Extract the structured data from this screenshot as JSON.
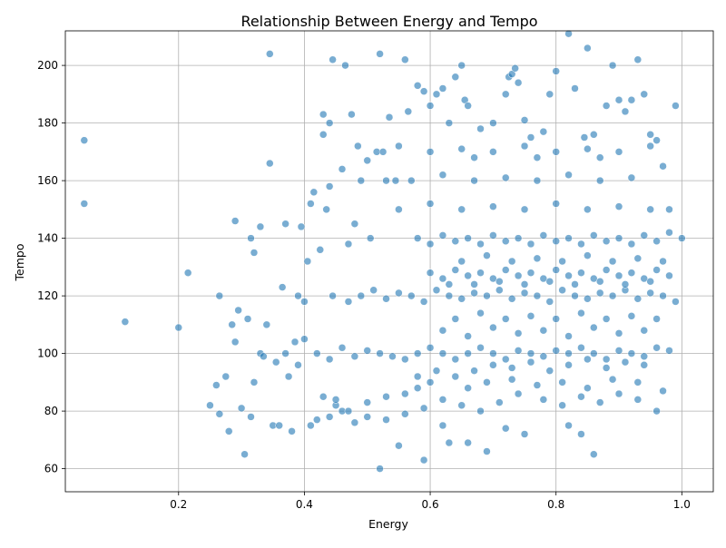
{
  "chart_data": {
    "type": "scatter",
    "title": "Relationship Between Energy and Tempo",
    "xlabel": "Energy",
    "ylabel": "Tempo",
    "xlim": [
      0.02,
      1.05
    ],
    "ylim": [
      52,
      212
    ],
    "xticks": [
      0.2,
      0.4,
      0.6,
      0.8,
      1.0
    ],
    "xtick_labels": [
      "0.2",
      "0.4",
      "0.6",
      "0.8",
      "1.0"
    ],
    "yticks": [
      60,
      80,
      100,
      120,
      140,
      160,
      180,
      200
    ],
    "ytick_labels": [
      "60",
      "80",
      "100",
      "120",
      "140",
      "160",
      "180",
      "200"
    ],
    "grid": true,
    "marker_color": "#1f77b4",
    "marker_alpha": 0.6,
    "points": [
      [
        0.05,
        152
      ],
      [
        0.05,
        174
      ],
      [
        0.115,
        111
      ],
      [
        0.2,
        109
      ],
      [
        0.215,
        128
      ],
      [
        0.25,
        82
      ],
      [
        0.26,
        89
      ],
      [
        0.265,
        79
      ],
      [
        0.265,
        120
      ],
      [
        0.275,
        92
      ],
      [
        0.28,
        73
      ],
      [
        0.285,
        110
      ],
      [
        0.29,
        146
      ],
      [
        0.29,
        104
      ],
      [
        0.295,
        115
      ],
      [
        0.3,
        81
      ],
      [
        0.305,
        65
      ],
      [
        0.31,
        112
      ],
      [
        0.315,
        140
      ],
      [
        0.315,
        78
      ],
      [
        0.32,
        135
      ],
      [
        0.32,
        90
      ],
      [
        0.33,
        100
      ],
      [
        0.33,
        144
      ],
      [
        0.335,
        99
      ],
      [
        0.34,
        110
      ],
      [
        0.345,
        166
      ],
      [
        0.345,
        204
      ],
      [
        0.35,
        75
      ],
      [
        0.355,
        97
      ],
      [
        0.36,
        75
      ],
      [
        0.365,
        123
      ],
      [
        0.37,
        145
      ],
      [
        0.37,
        100
      ],
      [
        0.375,
        92
      ],
      [
        0.38,
        73
      ],
      [
        0.385,
        104
      ],
      [
        0.39,
        120
      ],
      [
        0.39,
        96
      ],
      [
        0.395,
        144
      ],
      [
        0.4,
        105
      ],
      [
        0.4,
        118
      ],
      [
        0.405,
        132
      ],
      [
        0.41,
        152
      ],
      [
        0.41,
        75
      ],
      [
        0.415,
        156
      ],
      [
        0.42,
        77
      ],
      [
        0.425,
        136
      ],
      [
        0.43,
        183
      ],
      [
        0.43,
        176
      ],
      [
        0.435,
        150
      ],
      [
        0.44,
        158
      ],
      [
        0.44,
        180
      ],
      [
        0.445,
        120
      ],
      [
        0.445,
        202
      ],
      [
        0.45,
        82
      ],
      [
        0.46,
        164
      ],
      [
        0.465,
        200
      ],
      [
        0.47,
        138
      ],
      [
        0.475,
        183
      ],
      [
        0.48,
        145
      ],
      [
        0.485,
        172
      ],
      [
        0.49,
        160
      ],
      [
        0.5,
        167
      ],
      [
        0.505,
        140
      ],
      [
        0.515,
        170
      ],
      [
        0.52,
        204
      ],
      [
        0.525,
        170
      ],
      [
        0.53,
        160
      ],
      [
        0.535,
        182
      ],
      [
        0.545,
        160
      ],
      [
        0.55,
        172
      ],
      [
        0.56,
        202
      ],
      [
        0.565,
        184
      ],
      [
        0.58,
        193
      ],
      [
        0.59,
        191
      ],
      [
        0.6,
        186
      ],
      [
        0.61,
        190
      ],
      [
        0.62,
        192
      ],
      [
        0.63,
        180
      ],
      [
        0.64,
        196
      ],
      [
        0.65,
        200
      ],
      [
        0.655,
        188
      ],
      [
        0.66,
        186
      ],
      [
        0.67,
        168
      ],
      [
        0.68,
        178
      ],
      [
        0.7,
        180
      ],
      [
        0.72,
        190
      ],
      [
        0.725,
        196
      ],
      [
        0.73,
        197
      ],
      [
        0.735,
        199
      ],
      [
        0.74,
        194
      ],
      [
        0.75,
        181
      ],
      [
        0.76,
        175
      ],
      [
        0.77,
        168
      ],
      [
        0.78,
        177
      ],
      [
        0.79,
        190
      ],
      [
        0.8,
        198
      ],
      [
        0.82,
        211
      ],
      [
        0.83,
        192
      ],
      [
        0.845,
        175
      ],
      [
        0.85,
        206
      ],
      [
        0.86,
        176
      ],
      [
        0.87,
        168
      ],
      [
        0.88,
        186
      ],
      [
        0.89,
        200
      ],
      [
        0.9,
        188
      ],
      [
        0.91,
        184
      ],
      [
        0.92,
        188
      ],
      [
        0.93,
        202
      ],
      [
        0.94,
        190
      ],
      [
        0.95,
        176
      ],
      [
        0.96,
        174
      ],
      [
        0.97,
        165
      ],
      [
        0.98,
        150
      ],
      [
        0.99,
        186
      ],
      [
        1.0,
        140
      ],
      [
        0.75,
        72
      ],
      [
        0.55,
        68
      ],
      [
        0.52,
        60
      ],
      [
        0.59,
        63
      ],
      [
        0.69,
        66
      ],
      [
        0.86,
        65
      ],
      [
        0.63,
        69
      ],
      [
        0.66,
        69
      ],
      [
        0.84,
        72
      ],
      [
        0.82,
        75
      ],
      [
        0.72,
        74
      ],
      [
        0.62,
        75
      ],
      [
        0.48,
        76
      ],
      [
        0.44,
        78
      ],
      [
        0.46,
        80
      ],
      [
        0.5,
        83
      ],
      [
        0.53,
        85
      ],
      [
        0.56,
        86
      ],
      [
        0.58,
        88
      ],
      [
        0.6,
        90
      ],
      [
        0.64,
        92
      ],
      [
        0.67,
        94
      ],
      [
        0.7,
        96
      ],
      [
        0.73,
        95
      ],
      [
        0.76,
        97
      ],
      [
        0.79,
        94
      ],
      [
        0.82,
        96
      ],
      [
        0.85,
        98
      ],
      [
        0.88,
        95
      ],
      [
        0.91,
        97
      ],
      [
        0.94,
        96
      ],
      [
        0.97,
        87
      ],
      [
        0.96,
        80
      ],
      [
        0.93,
        84
      ],
      [
        0.9,
        86
      ],
      [
        0.87,
        83
      ],
      [
        0.84,
        85
      ],
      [
        0.81,
        82
      ],
      [
        0.78,
        84
      ],
      [
        0.74,
        86
      ],
      [
        0.71,
        83
      ],
      [
        0.68,
        80
      ],
      [
        0.65,
        82
      ],
      [
        0.62,
        84
      ],
      [
        0.59,
        81
      ],
      [
        0.56,
        79
      ],
      [
        0.53,
        77
      ],
      [
        0.5,
        78
      ],
      [
        0.47,
        80
      ],
      [
        0.45,
        84
      ],
      [
        0.43,
        85
      ],
      [
        0.42,
        100
      ],
      [
        0.44,
        98
      ],
      [
        0.46,
        102
      ],
      [
        0.48,
        99
      ],
      [
        0.5,
        101
      ],
      [
        0.52,
        100
      ],
      [
        0.54,
        99
      ],
      [
        0.56,
        98
      ],
      [
        0.58,
        100
      ],
      [
        0.6,
        102
      ],
      [
        0.62,
        100
      ],
      [
        0.64,
        98
      ],
      [
        0.66,
        100
      ],
      [
        0.68,
        102
      ],
      [
        0.7,
        100
      ],
      [
        0.72,
        98
      ],
      [
        0.74,
        101
      ],
      [
        0.76,
        100
      ],
      [
        0.78,
        99
      ],
      [
        0.8,
        101
      ],
      [
        0.82,
        100
      ],
      [
        0.84,
        102
      ],
      [
        0.86,
        100
      ],
      [
        0.88,
        98
      ],
      [
        0.9,
        101
      ],
      [
        0.92,
        100
      ],
      [
        0.94,
        99
      ],
      [
        0.96,
        102
      ],
      [
        0.98,
        101
      ],
      [
        0.47,
        118
      ],
      [
        0.49,
        120
      ],
      [
        0.51,
        122
      ],
      [
        0.53,
        119
      ],
      [
        0.55,
        121
      ],
      [
        0.57,
        120
      ],
      [
        0.59,
        118
      ],
      [
        0.61,
        122
      ],
      [
        0.63,
        120
      ],
      [
        0.65,
        119
      ],
      [
        0.67,
        121
      ],
      [
        0.69,
        120
      ],
      [
        0.71,
        122
      ],
      [
        0.73,
        119
      ],
      [
        0.75,
        121
      ],
      [
        0.77,
        120
      ],
      [
        0.79,
        118
      ],
      [
        0.81,
        122
      ],
      [
        0.83,
        120
      ],
      [
        0.85,
        119
      ],
      [
        0.87,
        121
      ],
      [
        0.89,
        120
      ],
      [
        0.91,
        122
      ],
      [
        0.93,
        119
      ],
      [
        0.95,
        121
      ],
      [
        0.97,
        120
      ],
      [
        0.99,
        118
      ],
      [
        0.6,
        128
      ],
      [
        0.62,
        126
      ],
      [
        0.64,
        129
      ],
      [
        0.66,
        127
      ],
      [
        0.68,
        128
      ],
      [
        0.7,
        126
      ],
      [
        0.72,
        129
      ],
      [
        0.74,
        127
      ],
      [
        0.76,
        128
      ],
      [
        0.78,
        126
      ],
      [
        0.8,
        129
      ],
      [
        0.82,
        127
      ],
      [
        0.84,
        128
      ],
      [
        0.86,
        126
      ],
      [
        0.88,
        129
      ],
      [
        0.9,
        127
      ],
      [
        0.92,
        128
      ],
      [
        0.94,
        126
      ],
      [
        0.96,
        129
      ],
      [
        0.98,
        127
      ],
      [
        0.58,
        140
      ],
      [
        0.6,
        138
      ],
      [
        0.62,
        141
      ],
      [
        0.64,
        139
      ],
      [
        0.66,
        140
      ],
      [
        0.68,
        138
      ],
      [
        0.7,
        141
      ],
      [
        0.72,
        139
      ],
      [
        0.74,
        140
      ],
      [
        0.76,
        138
      ],
      [
        0.78,
        141
      ],
      [
        0.8,
        139
      ],
      [
        0.82,
        140
      ],
      [
        0.84,
        138
      ],
      [
        0.86,
        141
      ],
      [
        0.88,
        139
      ],
      [
        0.9,
        140
      ],
      [
        0.92,
        138
      ],
      [
        0.94,
        141
      ],
      [
        0.96,
        139
      ],
      [
        0.98,
        142
      ],
      [
        0.55,
        150
      ],
      [
        0.6,
        152
      ],
      [
        0.65,
        150
      ],
      [
        0.7,
        151
      ],
      [
        0.75,
        150
      ],
      [
        0.8,
        152
      ],
      [
        0.85,
        150
      ],
      [
        0.9,
        151
      ],
      [
        0.95,
        150
      ],
      [
        0.57,
        160
      ],
      [
        0.62,
        162
      ],
      [
        0.67,
        160
      ],
      [
        0.72,
        161
      ],
      [
        0.77,
        160
      ],
      [
        0.82,
        162
      ],
      [
        0.87,
        160
      ],
      [
        0.92,
        161
      ],
      [
        0.6,
        170
      ],
      [
        0.65,
        171
      ],
      [
        0.7,
        170
      ],
      [
        0.75,
        172
      ],
      [
        0.8,
        170
      ],
      [
        0.85,
        171
      ],
      [
        0.9,
        170
      ],
      [
        0.95,
        172
      ],
      [
        0.62,
        108
      ],
      [
        0.66,
        106
      ],
      [
        0.7,
        109
      ],
      [
        0.74,
        107
      ],
      [
        0.78,
        108
      ],
      [
        0.82,
        106
      ],
      [
        0.86,
        109
      ],
      [
        0.9,
        107
      ],
      [
        0.94,
        108
      ],
      [
        0.64,
        112
      ],
      [
        0.68,
        114
      ],
      [
        0.72,
        112
      ],
      [
        0.76,
        113
      ],
      [
        0.8,
        112
      ],
      [
        0.84,
        114
      ],
      [
        0.88,
        112
      ],
      [
        0.92,
        113
      ],
      [
        0.96,
        112
      ],
      [
        0.58,
        92
      ],
      [
        0.61,
        94
      ],
      [
        0.66,
        88
      ],
      [
        0.69,
        90
      ],
      [
        0.73,
        91
      ],
      [
        0.77,
        89
      ],
      [
        0.81,
        90
      ],
      [
        0.85,
        88
      ],
      [
        0.89,
        91
      ],
      [
        0.93,
        90
      ],
      [
        0.65,
        132
      ],
      [
        0.69,
        134
      ],
      [
        0.73,
        132
      ],
      [
        0.77,
        133
      ],
      [
        0.81,
        132
      ],
      [
        0.85,
        134
      ],
      [
        0.89,
        132
      ],
      [
        0.93,
        133
      ],
      [
        0.97,
        132
      ],
      [
        0.63,
        124
      ],
      [
        0.67,
        124
      ],
      [
        0.71,
        125
      ],
      [
        0.75,
        124
      ],
      [
        0.79,
        125
      ],
      [
        0.83,
        124
      ],
      [
        0.87,
        125
      ],
      [
        0.91,
        124
      ],
      [
        0.95,
        125
      ]
    ]
  }
}
